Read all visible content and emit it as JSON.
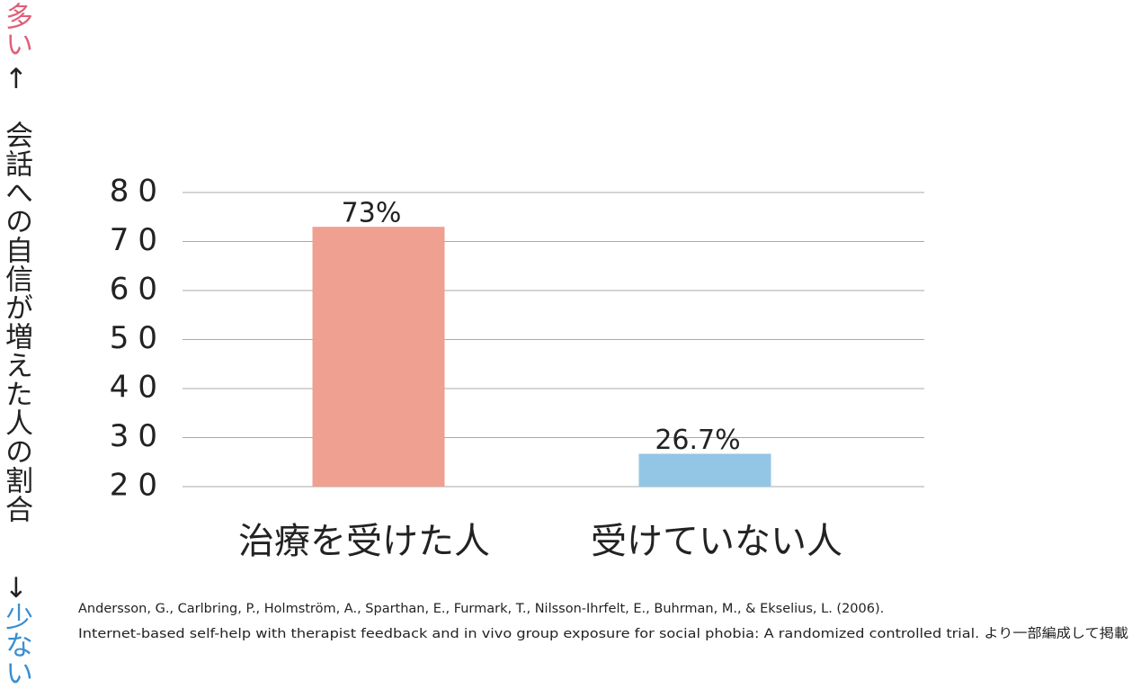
{
  "chart_data": {
    "type": "bar",
    "categories": [
      "治療を受けた人",
      "受けていない人"
    ],
    "values": [
      73,
      26.7
    ],
    "value_labels": [
      "73%",
      "26.7%"
    ],
    "colors": [
      "#efa090",
      "#93c6e4"
    ],
    "ylim": [
      20,
      80
    ],
    "yticks": [
      20,
      30,
      40,
      50,
      60,
      70,
      80
    ],
    "grid": true,
    "ylabel": "会話への自信が増えた人の割合",
    "annotations": [
      "多い",
      "↑",
      "↓",
      "少ない"
    ],
    "source": [
      "Andersson, G., Carlbring, P., Holmström, A., Sparthan, E., Furmark, T., Nilsson-Ihrfelt, E., Buhrman, M., & Ekselius, L. (2006).",
      "Internet-based self-help with therapist feedback and in vivo group exposure for social phobia: A randomized controlled trial. より一部編成して掲載"
    ]
  }
}
